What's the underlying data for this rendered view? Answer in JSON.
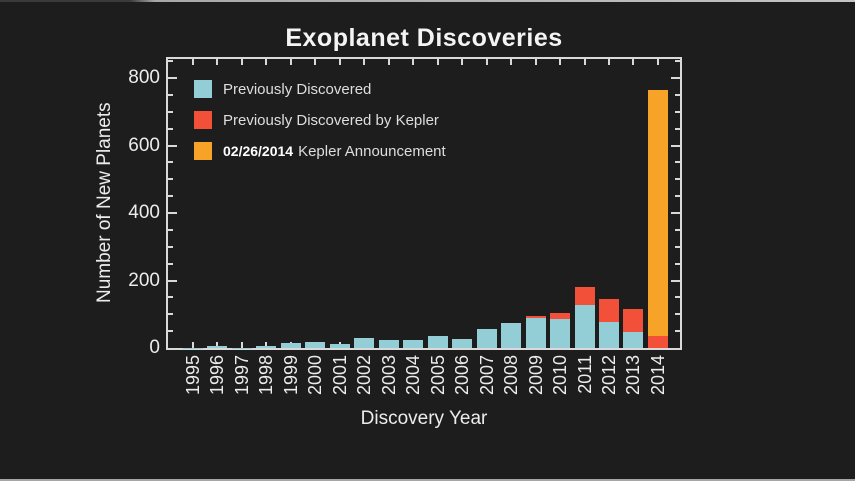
{
  "chart_data": {
    "type": "bar",
    "stacked": true,
    "title": "Exoplanet Discoveries",
    "xlabel": "Discovery Year",
    "ylabel": "Number of New Planets",
    "ylim": [
      0,
      860
    ],
    "yticks": [
      0,
      200,
      400,
      600,
      800
    ],
    "minor_tick_step": 50,
    "grid": false,
    "legend_position": "upper-left",
    "background_color": "#1d1d1d",
    "axis_color": "#d9d9d9",
    "categories": [
      "1995",
      "1996",
      "1997",
      "1998",
      "1999",
      "2000",
      "2001",
      "2002",
      "2003",
      "2004",
      "2005",
      "2006",
      "2007",
      "2008",
      "2009",
      "2010",
      "2011",
      "2012",
      "2013",
      "2014"
    ],
    "series": [
      {
        "key": "previously-discovered",
        "name": "Previously Discovered",
        "color": "#93ced6",
        "values": [
          1,
          6,
          1,
          7,
          15,
          19,
          12,
          29,
          23,
          25,
          37,
          27,
          55,
          74,
          90,
          85,
          126,
          76,
          47,
          0
        ]
      },
      {
        "key": "previously-discovered-by-kepler",
        "name": "Previously Discovered by Kepler",
        "color": "#f3503a",
        "values": [
          0,
          0,
          0,
          0,
          0,
          0,
          0,
          0,
          0,
          0,
          0,
          0,
          0,
          0,
          6,
          20,
          54,
          69,
          69,
          35
        ]
      },
      {
        "key": "kepler-announcement",
        "name": "Kepler Announcement",
        "color": "#f7a328",
        "values": [
          0,
          0,
          0,
          0,
          0,
          0,
          0,
          0,
          0,
          0,
          0,
          0,
          0,
          0,
          0,
          0,
          0,
          0,
          0,
          730
        ]
      }
    ],
    "legend_items": [
      {
        "prefix": "",
        "label": "Previously Discovered"
      },
      {
        "prefix": "",
        "label": "Previously Discovered by Kepler"
      },
      {
        "prefix": "02/26/2014",
        "label": "Kepler Announcement"
      }
    ]
  }
}
